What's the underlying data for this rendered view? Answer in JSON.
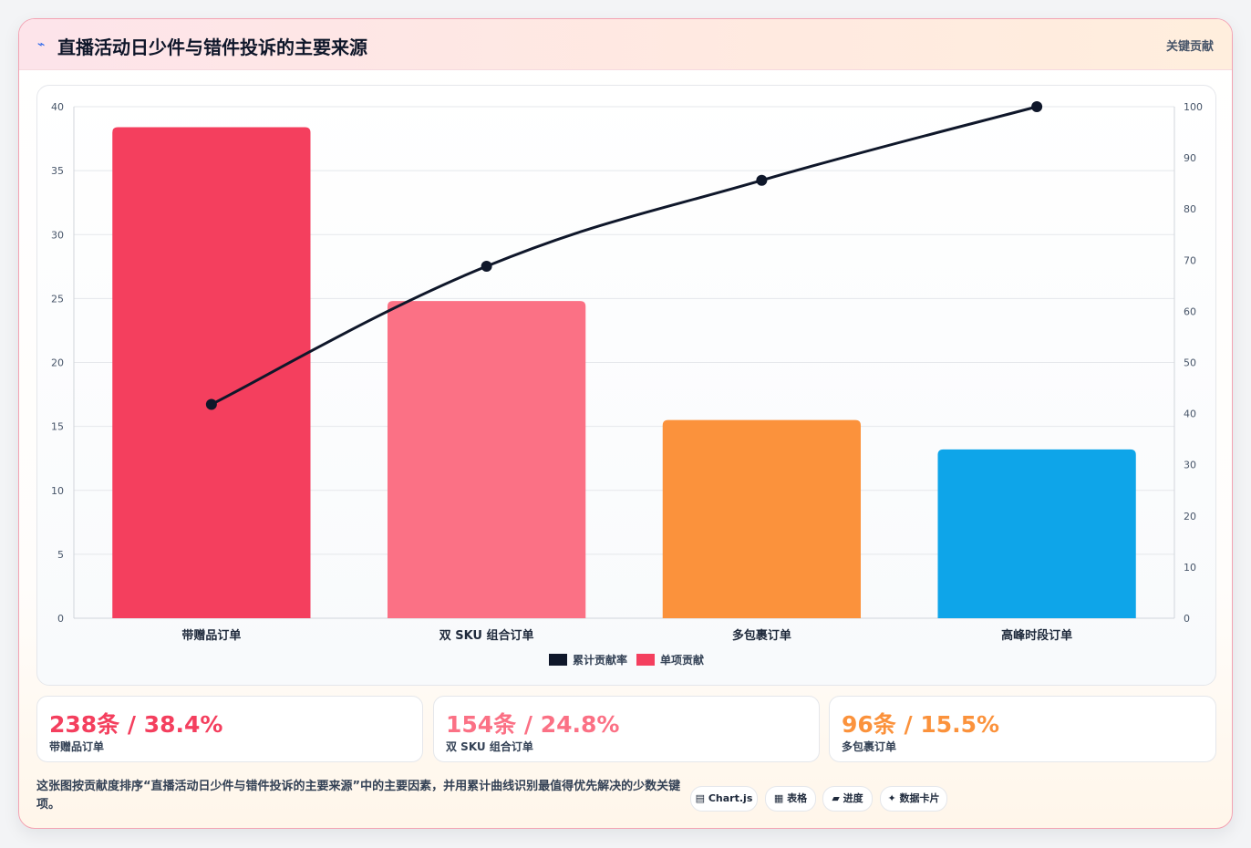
{
  "header": {
    "icon": "lightning-icon",
    "title": "直播活动日少件与错件投诉的主要来源",
    "tag": "关键贡献"
  },
  "chart_data": {
    "type": "bar",
    "categories": [
      "带赠品订单",
      "双 SKU 组合订单",
      "多包裹订单",
      "高峰时段订单"
    ],
    "series": [
      {
        "name": "单项贡献",
        "type": "bar",
        "axis": "left",
        "values": [
          38.4,
          24.8,
          15.5,
          13.2
        ],
        "colors": [
          "#f43f5e",
          "#fb7185",
          "#fb923c",
          "#0ea5e9"
        ]
      },
      {
        "name": "累计贡献率",
        "type": "line",
        "axis": "right",
        "values": [
          41.8,
          68.8,
          85.6,
          100
        ],
        "color": "#0f172a"
      }
    ],
    "y_left": {
      "min": 0,
      "max": 40,
      "ticks": [
        "0",
        "5",
        "10",
        "15",
        "20",
        "25",
        "30",
        "35",
        "40"
      ]
    },
    "y_right": {
      "min": 0,
      "max": 100,
      "ticks": [
        "0",
        "10",
        "20",
        "30",
        "40",
        "50",
        "60",
        "70",
        "80",
        "90",
        "100"
      ]
    },
    "grid": true,
    "legend": {
      "position": "bottom",
      "items": [
        "累计贡献率",
        "单项贡献"
      ]
    }
  },
  "stats": [
    {
      "value": "238条 / 38.4%",
      "label": "带赠品订单",
      "color": "#f43f5e"
    },
    {
      "value": "154条 / 24.8%",
      "label": "双 SKU 组合订单",
      "color": "#fb7185"
    },
    {
      "value": "96条 / 15.5%",
      "label": "多包裹订单",
      "color": "#fb923c"
    }
  ],
  "footer": {
    "description": "这张图按贡献度排序“直播活动日少件与错件投诉的主要来源”中的主要因素，并用累计曲线识别最值得优先解决的少数关键项。",
    "chips": [
      {
        "label": "Chart.js",
        "icon": "chart-icon",
        "glyph": "▤"
      },
      {
        "label": "表格",
        "icon": "table-icon",
        "glyph": "▦"
      },
      {
        "label": "进度",
        "icon": "progress-icon",
        "glyph": "▰"
      },
      {
        "label": "数据卡片",
        "icon": "sparkle-icon",
        "glyph": "✦"
      }
    ]
  }
}
